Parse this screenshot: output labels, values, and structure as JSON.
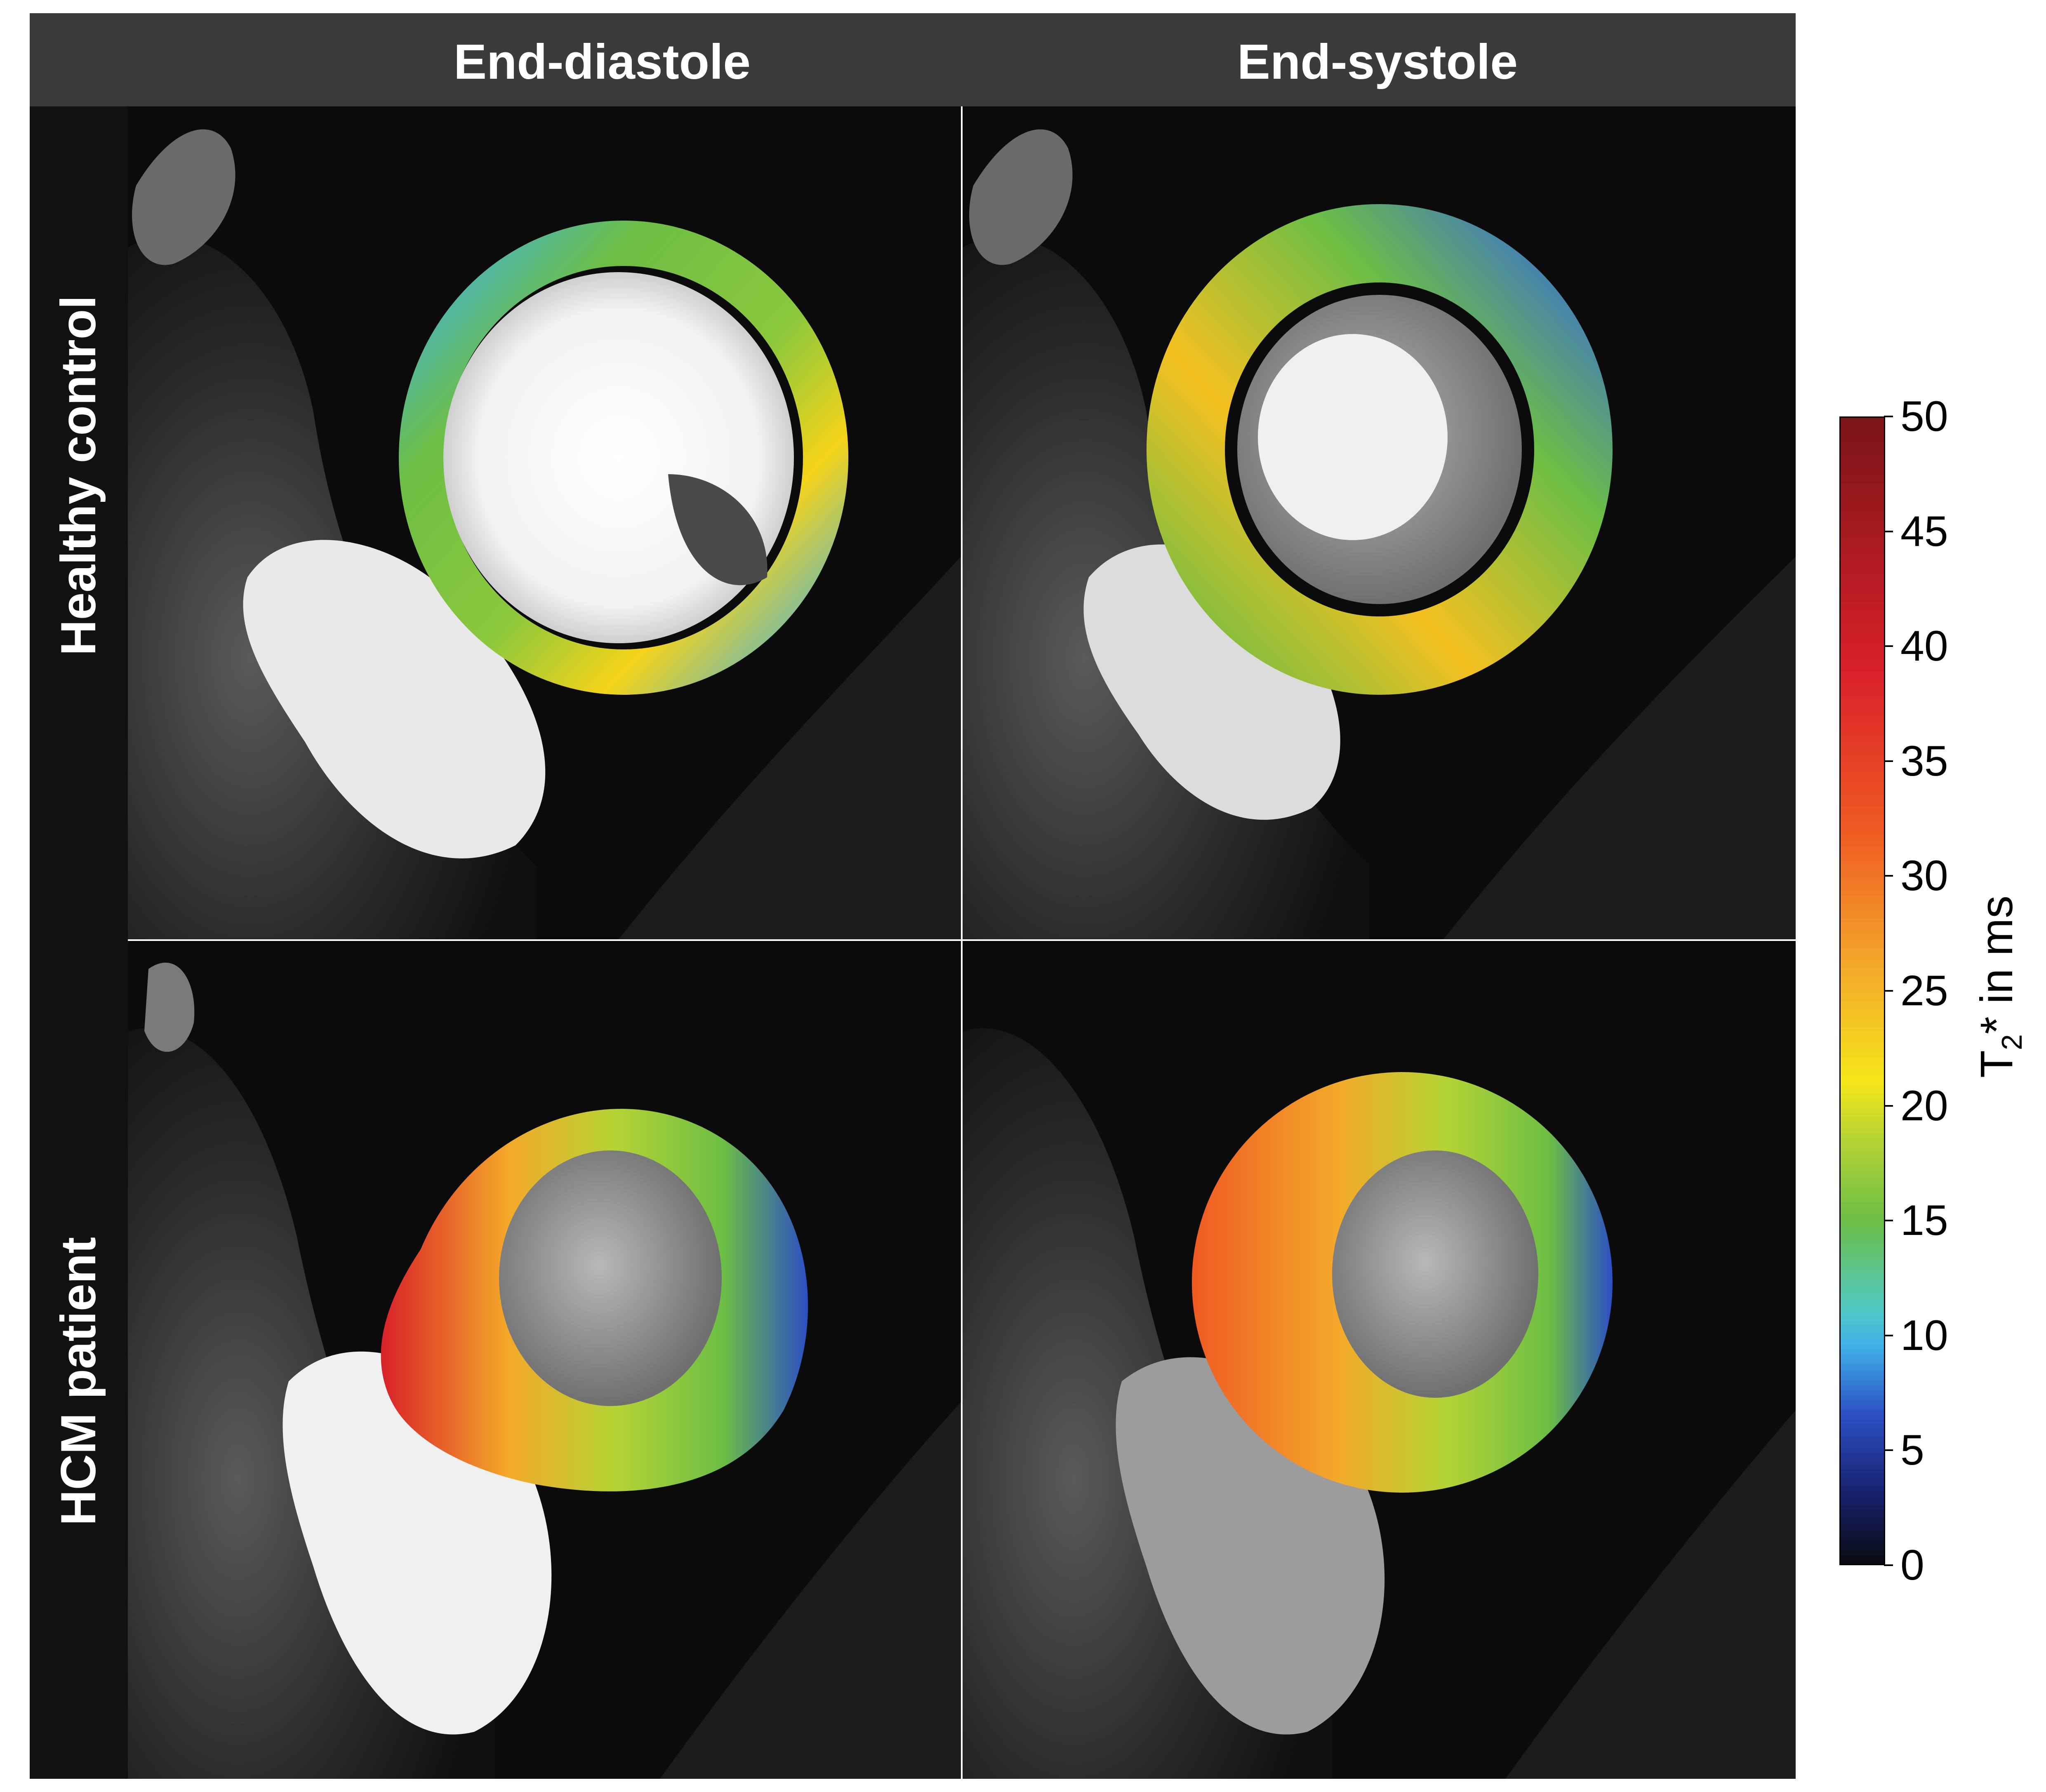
{
  "figure": {
    "column_headers": [
      "End-diastole",
      "End-systole"
    ],
    "row_labels": [
      "Healthy control",
      "HCM patient"
    ],
    "panels": [
      {
        "row": "Healthy control",
        "column": "End-diastole"
      },
      {
        "row": "Healthy control",
        "column": "End-systole"
      },
      {
        "row": "HCM patient",
        "column": "End-diastole"
      },
      {
        "row": "HCM patient",
        "column": "End-systole"
      }
    ]
  },
  "colorbar": {
    "label_main": "T",
    "label_sub": "2",
    "label_rest": "* in ms",
    "ticks": [
      "50",
      "45",
      "40",
      "35",
      "30",
      "25",
      "20",
      "15",
      "10",
      "5",
      "0"
    ],
    "range": [
      0,
      50
    ],
    "colormap_stops": [
      "#0a0a10",
      "#16206b",
      "#2b4fc4",
      "#3fb0e8",
      "#4fc8c8",
      "#6cbe45",
      "#b5d334",
      "#f5e61a",
      "#f4a92a",
      "#ef5a23",
      "#d9202a",
      "#7a1416"
    ]
  },
  "colors": {
    "header_bar": "#3b3b3b",
    "frame": "#111111",
    "background": "#ffffff"
  }
}
